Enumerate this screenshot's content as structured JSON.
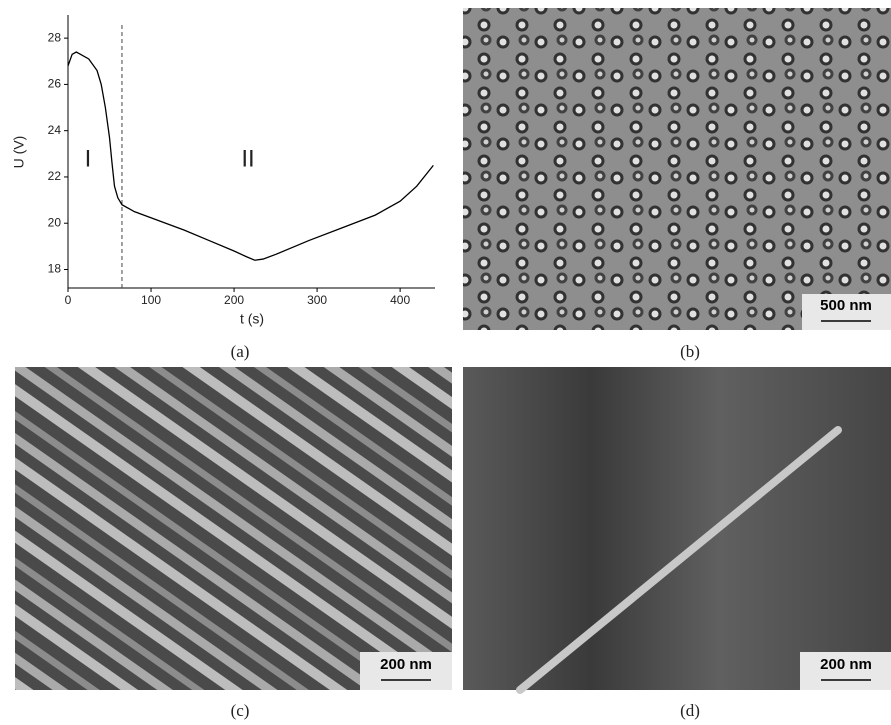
{
  "chart_data": {
    "type": "line",
    "xlabel": "t (s)",
    "ylabel": "U (V)",
    "x": [
      0,
      5,
      10,
      15,
      25,
      35,
      40,
      45,
      50,
      53,
      56,
      60,
      65,
      80,
      110,
      140,
      170,
      200,
      215,
      225,
      235,
      250,
      290,
      330,
      370,
      400,
      420,
      440
    ],
    "values": [
      26.8,
      27.3,
      27.4,
      27.3,
      27.1,
      26.6,
      26.0,
      25.0,
      23.7,
      22.6,
      21.6,
      21.1,
      20.8,
      20.5,
      20.1,
      19.7,
      19.25,
      18.8,
      18.55,
      18.4,
      18.45,
      18.65,
      19.25,
      19.8,
      20.35,
      20.95,
      21.6,
      22.5
    ],
    "color": "#000000",
    "xlim": [
      0,
      442
    ],
    "ylim": [
      17.2,
      29
    ],
    "xticks": [
      0,
      100,
      200,
      300,
      400
    ],
    "yticks": [
      18,
      20,
      22,
      24,
      26,
      28
    ],
    "vline": 65,
    "annotations": [
      "I",
      "II"
    ]
  },
  "panels": [
    {
      "caption": "(a)"
    },
    {
      "caption": "(b)",
      "scale_bar": "500 nm"
    },
    {
      "caption": "(c)",
      "scale_bar": "200 nm"
    },
    {
      "caption": "(d)",
      "scale_bar": "200 nm"
    }
  ]
}
